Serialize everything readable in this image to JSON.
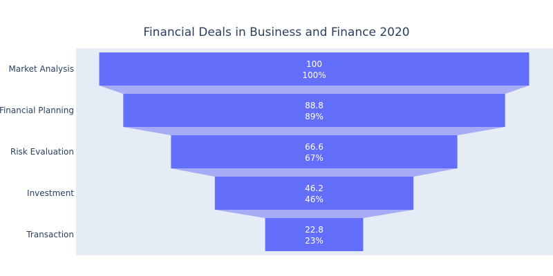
{
  "chart_data": {
    "type": "funnel",
    "title": "Financial Deals in Business and Finance 2020",
    "categories": [
      "Market Analysis",
      "Financial Planning",
      "Risk Evaluation",
      "Investment",
      "Transaction"
    ],
    "values": [
      100,
      88.8,
      66.6,
      46.2,
      22.8
    ],
    "percent_labels": [
      "100%",
      "89%",
      "67%",
      "46%",
      "23%"
    ],
    "colors": {
      "bar": "#636efa",
      "connector": "#a6abf6",
      "plot_background": "#e5ecf6",
      "text": "#2a3f5f",
      "value_text": "#ffffff"
    }
  }
}
